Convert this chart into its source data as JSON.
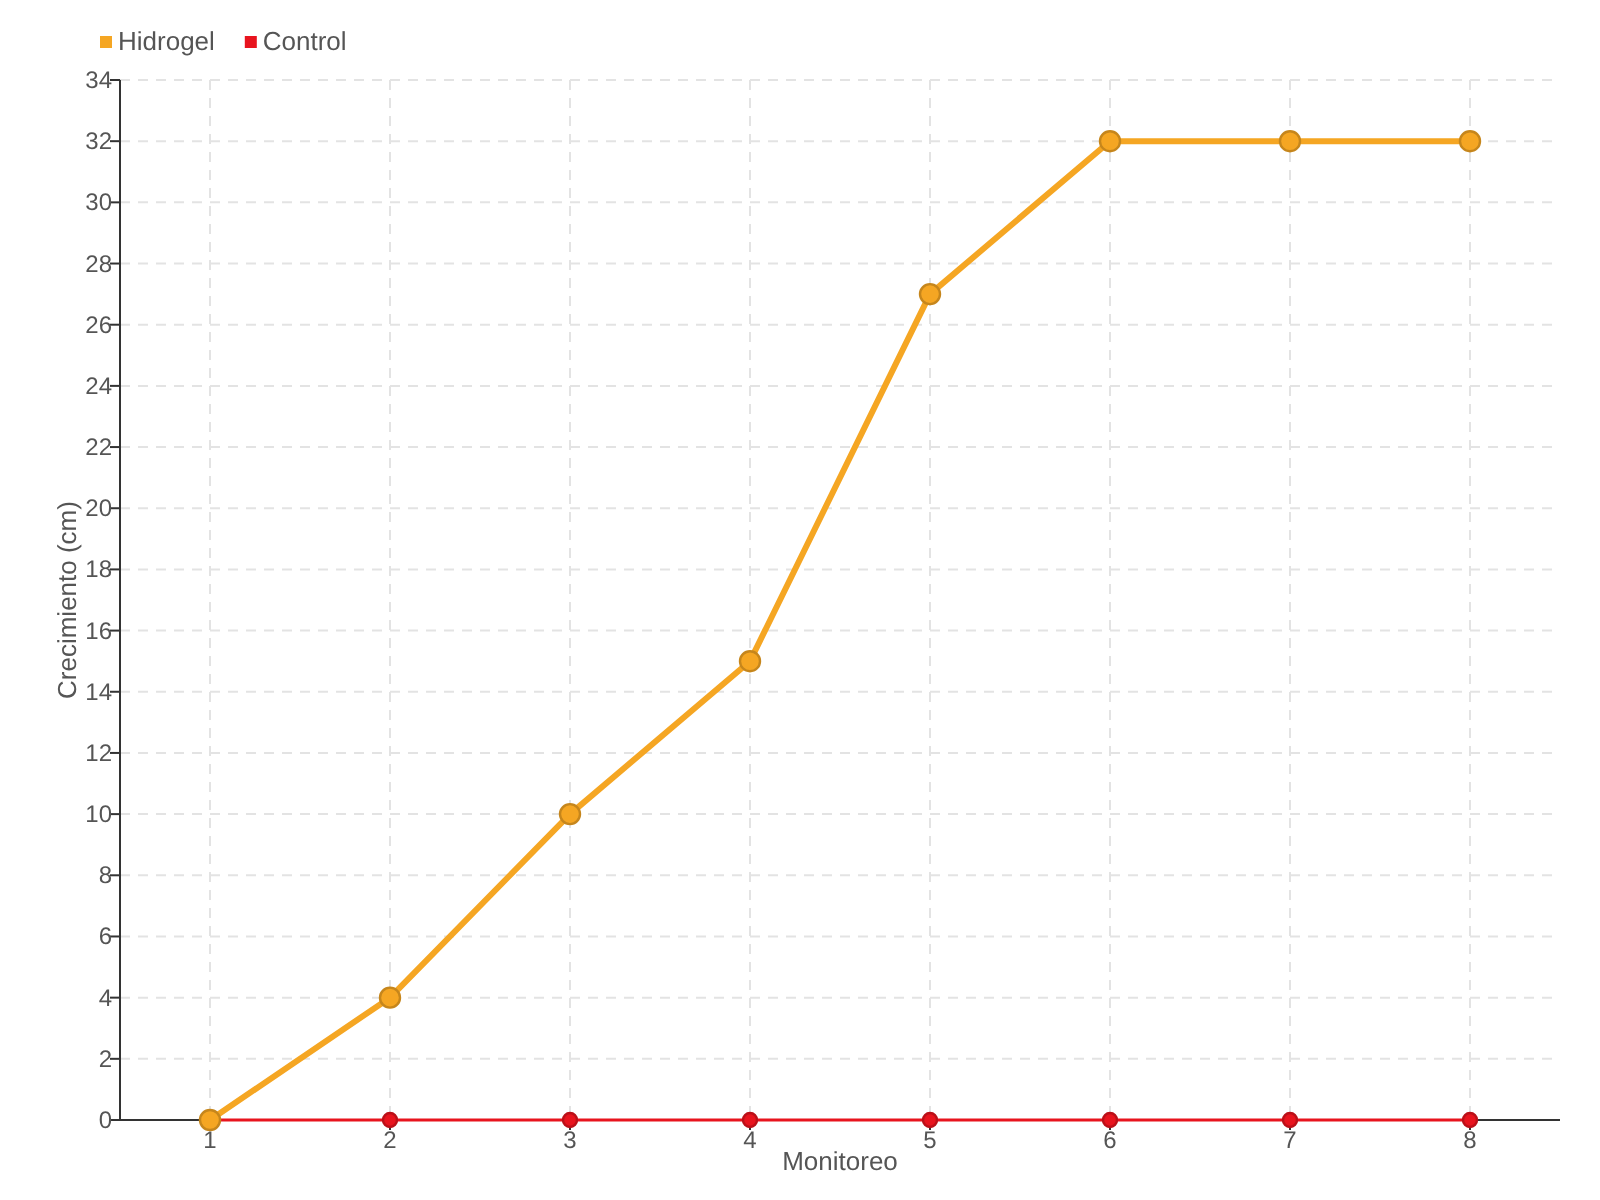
{
  "chart_data": {
    "type": "line",
    "xlabel": "Monitoreo",
    "ylabel": "Crecimiento (cm)",
    "x": [
      1,
      2,
      3,
      4,
      5,
      6,
      7,
      8
    ],
    "xlim": [
      0.5,
      8.5
    ],
    "xticks": [
      1,
      2,
      3,
      4,
      5,
      6,
      7,
      8
    ],
    "ylim": [
      0,
      34
    ],
    "yticks": [
      0,
      2,
      4,
      6,
      8,
      10,
      12,
      14,
      16,
      18,
      20,
      22,
      24,
      26,
      28,
      30,
      32,
      34
    ],
    "grid": true,
    "legend": "top left",
    "marker": "circle",
    "line_style": "solid",
    "series": [
      {
        "name": "Hidrogel",
        "color": "#f5a623",
        "values": [
          0,
          4,
          10,
          15,
          27,
          32,
          32,
          32
        ]
      },
      {
        "name": "Control",
        "color": "#e8141e",
        "values": [
          0,
          0,
          0,
          0,
          0,
          0,
          0,
          0
        ]
      }
    ]
  }
}
